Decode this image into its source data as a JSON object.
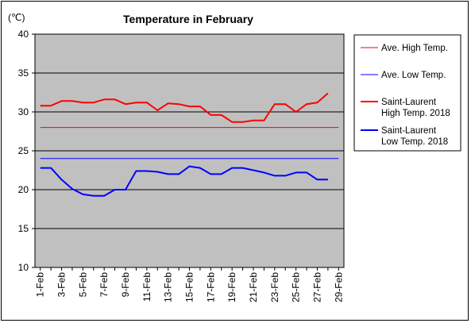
{
  "chart_data": {
    "type": "line",
    "title": "Temperature in February",
    "unit_label": "(℃)",
    "xlabel": "",
    "ylabel": "",
    "ylim": [
      10,
      40
    ],
    "yticks": [
      10,
      15,
      20,
      25,
      30,
      35,
      40
    ],
    "grid": "horizontal",
    "legend_position": "right",
    "plot_background": "#c0c0c0",
    "categories": [
      "1-Feb",
      "2-Feb",
      "3-Feb",
      "4-Feb",
      "5-Feb",
      "6-Feb",
      "7-Feb",
      "8-Feb",
      "9-Feb",
      "10-Feb",
      "11-Feb",
      "12-Feb",
      "13-Feb",
      "14-Feb",
      "15-Feb",
      "16-Feb",
      "17-Feb",
      "18-Feb",
      "19-Feb",
      "20-Feb",
      "21-Feb",
      "22-Feb",
      "23-Feb",
      "24-Feb",
      "25-Feb",
      "26-Feb",
      "27-Feb",
      "28-Feb",
      "29-Feb"
    ],
    "xtick_labels": [
      "1-Feb",
      "3-Feb",
      "5-Feb",
      "7-Feb",
      "9-Feb",
      "11-Feb",
      "13-Feb",
      "15-Feb",
      "17-Feb",
      "19-Feb",
      "21-Feb",
      "23-Feb",
      "25-Feb",
      "27-Feb",
      "29-Feb"
    ],
    "series": [
      {
        "name": "Ave. High Temp.",
        "color": "#ff0000",
        "style": "thin",
        "values": [
          28,
          28,
          28,
          28,
          28,
          28,
          28,
          28,
          28,
          28,
          28,
          28,
          28,
          28,
          28,
          28,
          28,
          28,
          28,
          28,
          28,
          28,
          28,
          28,
          28,
          28,
          28,
          28,
          28
        ]
      },
      {
        "name": "Ave. Low Temp.",
        "color": "#0000ff",
        "style": "thin",
        "values": [
          24,
          24,
          24,
          24,
          24,
          24,
          24,
          24,
          24,
          24,
          24,
          24,
          24,
          24,
          24,
          24,
          24,
          24,
          24,
          24,
          24,
          24,
          24,
          24,
          24,
          24,
          24,
          24,
          24
        ]
      },
      {
        "name": "Saint-Laurent High Temp. 2018",
        "legend_lines": [
          "Saint-Laurent",
          "High Temp. 2018"
        ],
        "color": "#ff0000",
        "style": "thick",
        "values": [
          30.8,
          30.8,
          31.4,
          31.4,
          31.2,
          31.2,
          31.6,
          31.6,
          31.0,
          31.2,
          31.2,
          30.2,
          31.1,
          31.0,
          30.7,
          30.7,
          29.6,
          29.6,
          28.7,
          28.7,
          28.9,
          28.9,
          31.0,
          31.0,
          30.0,
          31.0,
          31.2,
          32.4,
          null
        ]
      },
      {
        "name": "Saint-Laurent Low Temp. 2018",
        "legend_lines": [
          "Saint-Laurent",
          "Low Temp. 2018"
        ],
        "color": "#0000ff",
        "style": "thick",
        "values": [
          22.8,
          22.8,
          21.3,
          20.1,
          19.4,
          19.2,
          19.2,
          20.0,
          20.0,
          22.4,
          22.4,
          22.3,
          22.0,
          22.0,
          23.0,
          22.8,
          22.0,
          22.0,
          22.8,
          22.8,
          22.5,
          22.2,
          21.8,
          21.8,
          22.2,
          22.2,
          21.3,
          21.3,
          null
        ]
      }
    ]
  }
}
